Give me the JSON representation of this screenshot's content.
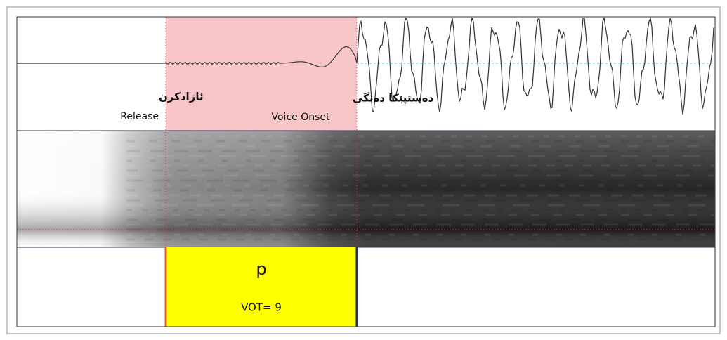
{
  "waveform": {
    "release_label_ku": "ئازادکرن",
    "release_label_en": "Release",
    "onset_label_ku": "دەستپێکا دەنگی",
    "onset_label_en": "Voice Onset"
  },
  "tier": {
    "segment": "p",
    "vot": "VOT= 9"
  }
}
